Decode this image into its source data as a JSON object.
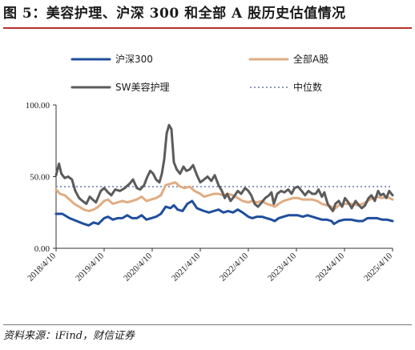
{
  "title": "图 5：美容护理、沪深 300 和全部 A 股历史估值情况",
  "source": "资料来源：iFind，财信证券",
  "chart_data": {
    "type": "line",
    "title": "",
    "xlabel": "",
    "ylabel": "",
    "x_ticks": [
      "2018/4/10",
      "2019/4/10",
      "2020/4/10",
      "2021/4/10",
      "2022/4/10",
      "2023/4/10",
      "2024/4/10",
      "2025/4/10"
    ],
    "x_range": [
      2018.27,
      2025.27
    ],
    "y_ticks": [
      "0.00",
      "50.00",
      "100.00"
    ],
    "ylim": [
      0,
      100
    ],
    "grid": false,
    "legend_position": "top",
    "series": [
      {
        "name": "沪深300",
        "color": "#1f4e9c",
        "points": [
          [
            2018.27,
            24
          ],
          [
            2018.4,
            24
          ],
          [
            2018.55,
            21
          ],
          [
            2018.7,
            19
          ],
          [
            2018.85,
            17
          ],
          [
            2018.95,
            16
          ],
          [
            2019.05,
            18
          ],
          [
            2019.15,
            17
          ],
          [
            2019.27,
            21
          ],
          [
            2019.35,
            22
          ],
          [
            2019.45,
            20
          ],
          [
            2019.55,
            21
          ],
          [
            2019.65,
            21
          ],
          [
            2019.75,
            23
          ],
          [
            2019.85,
            21
          ],
          [
            2019.95,
            21
          ],
          [
            2020.05,
            23
          ],
          [
            2020.15,
            20
          ],
          [
            2020.25,
            21
          ],
          [
            2020.35,
            22
          ],
          [
            2020.45,
            24
          ],
          [
            2020.55,
            29
          ],
          [
            2020.65,
            28
          ],
          [
            2020.72,
            30
          ],
          [
            2020.8,
            27
          ],
          [
            2020.9,
            26
          ],
          [
            2021.0,
            31
          ],
          [
            2021.1,
            33
          ],
          [
            2021.2,
            28
          ],
          [
            2021.27,
            27
          ],
          [
            2021.35,
            26
          ],
          [
            2021.45,
            25
          ],
          [
            2021.55,
            26
          ],
          [
            2021.65,
            27
          ],
          [
            2021.75,
            25
          ],
          [
            2021.85,
            26
          ],
          [
            2021.95,
            25
          ],
          [
            2022.05,
            27
          ],
          [
            2022.15,
            25
          ],
          [
            2022.27,
            22
          ],
          [
            2022.35,
            21
          ],
          [
            2022.45,
            22
          ],
          [
            2022.55,
            22
          ],
          [
            2022.65,
            21
          ],
          [
            2022.75,
            20
          ],
          [
            2022.82,
            19
          ],
          [
            2022.9,
            21
          ],
          [
            2023.0,
            22
          ],
          [
            2023.1,
            23
          ],
          [
            2023.2,
            23
          ],
          [
            2023.3,
            23
          ],
          [
            2023.4,
            22
          ],
          [
            2023.5,
            23
          ],
          [
            2023.6,
            22
          ],
          [
            2023.7,
            21
          ],
          [
            2023.8,
            20
          ],
          [
            2023.9,
            20
          ],
          [
            2024.0,
            19
          ],
          [
            2024.05,
            17
          ],
          [
            2024.15,
            19
          ],
          [
            2024.27,
            20
          ],
          [
            2024.4,
            20
          ],
          [
            2024.55,
            19
          ],
          [
            2024.65,
            19
          ],
          [
            2024.75,
            21
          ],
          [
            2024.85,
            21
          ],
          [
            2024.95,
            21
          ],
          [
            2025.05,
            20
          ],
          [
            2025.15,
            20
          ],
          [
            2025.27,
            19
          ]
        ]
      },
      {
        "name": "全部A股",
        "color": "#e0ac82",
        "points": [
          [
            2018.27,
            41
          ],
          [
            2018.35,
            38
          ],
          [
            2018.45,
            37
          ],
          [
            2018.55,
            34
          ],
          [
            2018.65,
            31
          ],
          [
            2018.75,
            29
          ],
          [
            2018.85,
            27
          ],
          [
            2018.95,
            26
          ],
          [
            2019.05,
            27
          ],
          [
            2019.15,
            29
          ],
          [
            2019.27,
            33
          ],
          [
            2019.35,
            34
          ],
          [
            2019.45,
            31
          ],
          [
            2019.55,
            32
          ],
          [
            2019.65,
            33
          ],
          [
            2019.75,
            32
          ],
          [
            2019.85,
            33
          ],
          [
            2019.95,
            34
          ],
          [
            2020.05,
            36
          ],
          [
            2020.15,
            33
          ],
          [
            2020.25,
            34
          ],
          [
            2020.35,
            35
          ],
          [
            2020.45,
            37
          ],
          [
            2020.55,
            44
          ],
          [
            2020.65,
            45
          ],
          [
            2020.75,
            46
          ],
          [
            2020.85,
            43
          ],
          [
            2020.95,
            42
          ],
          [
            2021.05,
            43
          ],
          [
            2021.15,
            40
          ],
          [
            2021.27,
            38
          ],
          [
            2021.35,
            36
          ],
          [
            2021.45,
            37
          ],
          [
            2021.55,
            38
          ],
          [
            2021.65,
            38
          ],
          [
            2021.75,
            37
          ],
          [
            2021.85,
            38
          ],
          [
            2021.95,
            37
          ],
          [
            2022.05,
            35
          ],
          [
            2022.15,
            33
          ],
          [
            2022.27,
            32
          ],
          [
            2022.35,
            33
          ],
          [
            2022.45,
            32
          ],
          [
            2022.55,
            33
          ],
          [
            2022.65,
            31
          ],
          [
            2022.75,
            30
          ],
          [
            2022.82,
            29
          ],
          [
            2022.9,
            31
          ],
          [
            2023.0,
            33
          ],
          [
            2023.1,
            34
          ],
          [
            2023.2,
            35
          ],
          [
            2023.3,
            35
          ],
          [
            2023.4,
            34
          ],
          [
            2023.5,
            34
          ],
          [
            2023.6,
            34
          ],
          [
            2023.7,
            33
          ],
          [
            2023.8,
            31
          ],
          [
            2023.9,
            30
          ],
          [
            2024.0,
            29
          ],
          [
            2024.05,
            27
          ],
          [
            2024.15,
            30
          ],
          [
            2024.27,
            31
          ],
          [
            2024.4,
            31
          ],
          [
            2024.55,
            30
          ],
          [
            2024.65,
            31
          ],
          [
            2024.75,
            33
          ],
          [
            2024.85,
            35
          ],
          [
            2024.95,
            36
          ],
          [
            2025.05,
            35
          ],
          [
            2025.15,
            36
          ],
          [
            2025.27,
            34
          ]
        ]
      },
      {
        "name": "SW美容护理",
        "color": "#5b5b5b",
        "points": [
          [
            2018.27,
            51
          ],
          [
            2018.33,
            59
          ],
          [
            2018.38,
            52
          ],
          [
            2018.45,
            49
          ],
          [
            2018.52,
            50
          ],
          [
            2018.6,
            48
          ],
          [
            2018.67,
            40
          ],
          [
            2018.75,
            35
          ],
          [
            2018.82,
            33
          ],
          [
            2018.9,
            31
          ],
          [
            2018.97,
            36
          ],
          [
            2019.03,
            34
          ],
          [
            2019.1,
            32
          ],
          [
            2019.2,
            40
          ],
          [
            2019.27,
            42
          ],
          [
            2019.35,
            39
          ],
          [
            2019.42,
            37
          ],
          [
            2019.5,
            41
          ],
          [
            2019.6,
            40
          ],
          [
            2019.7,
            42
          ],
          [
            2019.8,
            45
          ],
          [
            2019.87,
            48
          ],
          [
            2019.95,
            42
          ],
          [
            2020.02,
            41
          ],
          [
            2020.1,
            44
          ],
          [
            2020.17,
            50
          ],
          [
            2020.23,
            54
          ],
          [
            2020.29,
            52
          ],
          [
            2020.35,
            48
          ],
          [
            2020.42,
            46
          ],
          [
            2020.47,
            52
          ],
          [
            2020.52,
            62
          ],
          [
            2020.57,
            80
          ],
          [
            2020.62,
            86
          ],
          [
            2020.67,
            83
          ],
          [
            2020.72,
            60
          ],
          [
            2020.78,
            55
          ],
          [
            2020.85,
            52
          ],
          [
            2020.92,
            57
          ],
          [
            2020.98,
            54
          ],
          [
            2021.05,
            55
          ],
          [
            2021.12,
            58
          ],
          [
            2021.2,
            51
          ],
          [
            2021.27,
            46
          ],
          [
            2021.35,
            48
          ],
          [
            2021.42,
            50
          ],
          [
            2021.5,
            47
          ],
          [
            2021.57,
            51
          ],
          [
            2021.65,
            44
          ],
          [
            2021.72,
            40
          ],
          [
            2021.78,
            35
          ],
          [
            2021.83,
            38
          ],
          [
            2021.9,
            33
          ],
          [
            2021.97,
            36
          ],
          [
            2022.05,
            40
          ],
          [
            2022.12,
            38
          ],
          [
            2022.2,
            42
          ],
          [
            2022.27,
            40
          ],
          [
            2022.33,
            37
          ],
          [
            2022.4,
            31
          ],
          [
            2022.47,
            29
          ],
          [
            2022.55,
            32
          ],
          [
            2022.62,
            35
          ],
          [
            2022.7,
            37
          ],
          [
            2022.75,
            39
          ],
          [
            2022.8,
            31
          ],
          [
            2022.87,
            38
          ],
          [
            2022.95,
            40
          ],
          [
            2023.02,
            39
          ],
          [
            2023.1,
            41
          ],
          [
            2023.17,
            38
          ],
          [
            2023.23,
            42
          ],
          [
            2023.3,
            43
          ],
          [
            2023.38,
            40
          ],
          [
            2023.45,
            37
          ],
          [
            2023.52,
            40
          ],
          [
            2023.6,
            38
          ],
          [
            2023.67,
            38
          ],
          [
            2023.73,
            41
          ],
          [
            2023.8,
            36
          ],
          [
            2023.85,
            39
          ],
          [
            2023.92,
            31
          ],
          [
            2023.98,
            28
          ],
          [
            2024.03,
            26
          ],
          [
            2024.08,
            31
          ],
          [
            2024.15,
            33
          ],
          [
            2024.22,
            29
          ],
          [
            2024.28,
            35
          ],
          [
            2024.35,
            32
          ],
          [
            2024.42,
            28
          ],
          [
            2024.5,
            33
          ],
          [
            2024.57,
            30
          ],
          [
            2024.63,
            28
          ],
          [
            2024.7,
            30
          ],
          [
            2024.77,
            35
          ],
          [
            2024.83,
            37
          ],
          [
            2024.9,
            33
          ],
          [
            2024.97,
            40
          ],
          [
            2025.02,
            37
          ],
          [
            2025.08,
            38
          ],
          [
            2025.14,
            35
          ],
          [
            2025.2,
            40
          ],
          [
            2025.27,
            37
          ]
        ]
      },
      {
        "name": "中位数",
        "color": "#8d9bc2",
        "style": "dotted",
        "points": [
          [
            2018.27,
            43
          ],
          [
            2025.27,
            43
          ]
        ]
      }
    ]
  }
}
